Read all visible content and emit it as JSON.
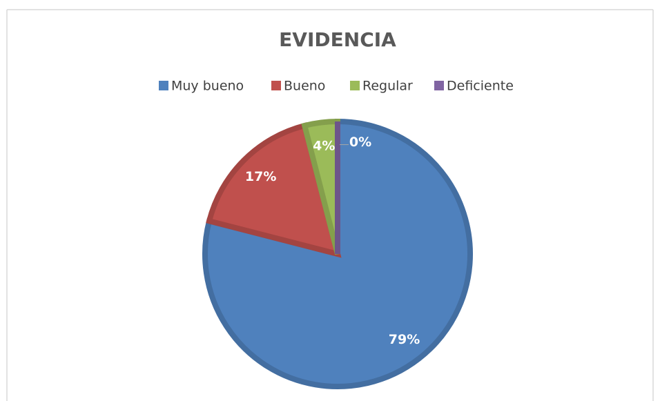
{
  "chart_data": {
    "type": "pie",
    "title": "EVIDENCIA",
    "categories": [
      "Muy bueno",
      "Bueno",
      "Regular",
      "Deficiente"
    ],
    "values": [
      79,
      17,
      4,
      0
    ],
    "value_labels": [
      "79%",
      "17%",
      "4%",
      "0%"
    ],
    "colors": [
      "#4f81bd",
      "#c0504d",
      "#9bbb59",
      "#8064a2"
    ],
    "legend": "top"
  }
}
